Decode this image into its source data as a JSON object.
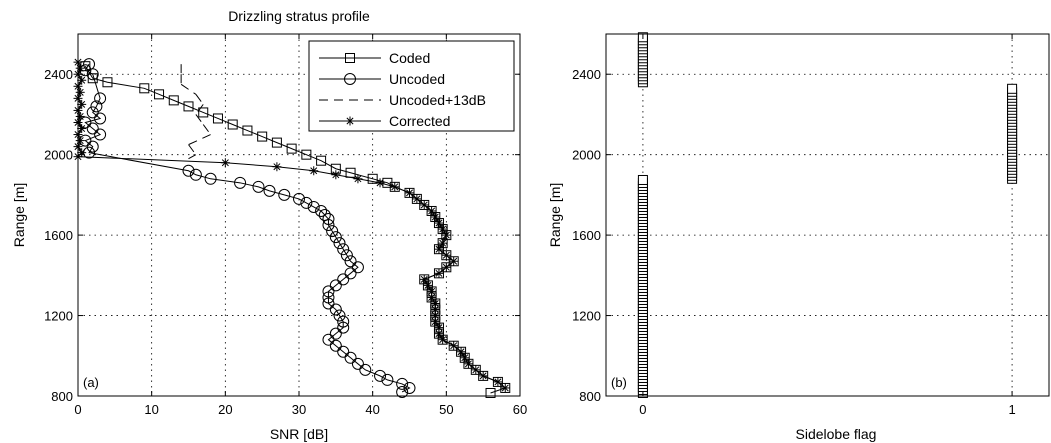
{
  "chart_data": [
    {
      "type": "line",
      "title": "Drizzling stratus profile",
      "panel_label": "(a)",
      "xlabel": "SNR [dB]",
      "ylabel": "Range [m]",
      "xlim": [
        0,
        60
      ],
      "ylim": [
        800,
        2600
      ],
      "xticks": [
        0,
        10,
        20,
        30,
        40,
        50,
        60
      ],
      "yticks": [
        800,
        1200,
        1600,
        2000,
        2400
      ],
      "grid": true,
      "legend_position": "top-right",
      "series": [
        {
          "name": "Coded",
          "marker": "square",
          "line": "solid",
          "points": [
            [
              1,
              2440
            ],
            [
              2,
              2380
            ],
            [
              4,
              2360
            ],
            [
              9,
              2330
            ],
            [
              11,
              2300
            ],
            [
              13,
              2270
            ],
            [
              15,
              2240
            ],
            [
              17,
              2210
            ],
            [
              19,
              2180
            ],
            [
              21,
              2150
            ],
            [
              23,
              2120
            ],
            [
              25,
              2090
            ],
            [
              27,
              2060
            ],
            [
              29,
              2030
            ],
            [
              31,
              2000
            ],
            [
              33,
              1970
            ],
            [
              35,
              1930
            ],
            [
              37,
              1910
            ],
            [
              40,
              1880
            ],
            [
              42,
              1860
            ],
            [
              43,
              1840
            ],
            [
              45,
              1810
            ],
            [
              46,
              1780
            ],
            [
              47,
              1750
            ],
            [
              48,
              1720
            ],
            [
              48.5,
              1690
            ],
            [
              49,
              1660
            ],
            [
              49.5,
              1630
            ],
            [
              50,
              1600
            ],
            [
              49.5,
              1560
            ],
            [
              49,
              1530
            ],
            [
              50,
              1500
            ],
            [
              51,
              1470
            ],
            [
              50,
              1440
            ],
            [
              49,
              1410
            ],
            [
              47,
              1380
            ],
            [
              47.5,
              1350
            ],
            [
              48,
              1320
            ],
            [
              48,
              1290
            ],
            [
              48.5,
              1260
            ],
            [
              48.5,
              1230
            ],
            [
              48.5,
              1200
            ],
            [
              48.5,
              1170
            ],
            [
              49,
              1140
            ],
            [
              49,
              1110
            ],
            [
              49.5,
              1080
            ],
            [
              51,
              1050
            ],
            [
              52,
              1020
            ],
            [
              52.5,
              990
            ],
            [
              53,
              960
            ],
            [
              54,
              930
            ],
            [
              55,
              900
            ],
            [
              57,
              870
            ],
            [
              58,
              840
            ],
            [
              56,
              815
            ]
          ]
        },
        {
          "name": "Uncoded",
          "marker": "circle",
          "line": "solid",
          "points": [
            [
              1.5,
              2450
            ],
            [
              1,
              2420
            ],
            [
              2,
              2400
            ],
            [
              3,
              2280
            ],
            [
              2.5,
              2240
            ],
            [
              2,
              2210
            ],
            [
              3,
              2180
            ],
            [
              1,
              2160
            ],
            [
              2,
              2130
            ],
            [
              3,
              2100
            ],
            [
              1,
              2070
            ],
            [
              2,
              2040
            ],
            [
              1.5,
              2010
            ],
            [
              15,
              1920
            ],
            [
              16,
              1900
            ],
            [
              18,
              1880
            ],
            [
              22,
              1860
            ],
            [
              24.5,
              1840
            ],
            [
              26,
              1820
            ],
            [
              28,
              1800
            ],
            [
              30,
              1780
            ],
            [
              31,
              1760
            ],
            [
              32,
              1740
            ],
            [
              33,
              1720
            ],
            [
              33.5,
              1700
            ],
            [
              34,
              1680
            ],
            [
              34,
              1650
            ],
            [
              34.5,
              1620
            ],
            [
              35,
              1590
            ],
            [
              35.5,
              1560
            ],
            [
              36,
              1530
            ],
            [
              36.5,
              1500
            ],
            [
              37,
              1470
            ],
            [
              38,
              1440
            ],
            [
              37,
              1410
            ],
            [
              36,
              1380
            ],
            [
              35,
              1350
            ],
            [
              34,
              1320
            ],
            [
              34,
              1290
            ],
            [
              34,
              1260
            ],
            [
              35,
              1230
            ],
            [
              35.5,
              1200
            ],
            [
              36,
              1170
            ],
            [
              36,
              1140
            ],
            [
              35,
              1110
            ],
            [
              34,
              1080
            ],
            [
              35,
              1050
            ],
            [
              36,
              1020
            ],
            [
              37,
              990
            ],
            [
              38,
              960
            ],
            [
              39,
              930
            ],
            [
              41,
              900
            ],
            [
              42,
              880
            ],
            [
              44,
              860
            ],
            [
              45,
              840
            ],
            [
              44,
              820
            ]
          ]
        },
        {
          "name": "Uncoded+13dB",
          "marker": "none",
          "line": "dashed",
          "points": [
            [
              14,
              2450
            ],
            [
              14,
              2400
            ],
            [
              14,
              2350
            ],
            [
              16,
              2300
            ],
            [
              17,
              2250
            ],
            [
              16,
              2200
            ],
            [
              17,
              2150
            ],
            [
              18,
              2100
            ],
            [
              15,
              2050
            ],
            [
              16,
              2000
            ],
            [
              15,
              1980
            ]
          ]
        },
        {
          "name": "Corrected",
          "marker": "asterisk",
          "line": "solid",
          "points": [
            [
              0,
              2460
            ],
            [
              0.3,
              2430
            ],
            [
              0,
              2400
            ],
            [
              0.5,
              2370
            ],
            [
              0,
              2340
            ],
            [
              0.3,
              2310
            ],
            [
              0,
              2280
            ],
            [
              0.5,
              2250
            ],
            [
              0,
              2220
            ],
            [
              0.3,
              2190
            ],
            [
              0,
              2160
            ],
            [
              0.5,
              2130
            ],
            [
              0,
              2100
            ],
            [
              0.3,
              2070
            ],
            [
              0,
              2040
            ],
            [
              0.5,
              2010
            ],
            [
              0,
              1990
            ],
            [
              20,
              1960
            ],
            [
              27,
              1940
            ],
            [
              32,
              1920
            ],
            [
              35,
              1900
            ],
            [
              38,
              1880
            ],
            [
              41,
              1860
            ],
            [
              43,
              1840
            ],
            [
              45,
              1810
            ],
            [
              46,
              1780
            ],
            [
              47,
              1750
            ],
            [
              48,
              1720
            ],
            [
              48.5,
              1690
            ],
            [
              49,
              1660
            ],
            [
              49.5,
              1630
            ],
            [
              50,
              1600
            ],
            [
              49.5,
              1560
            ],
            [
              49,
              1530
            ],
            [
              50,
              1500
            ],
            [
              51,
              1470
            ],
            [
              50,
              1440
            ],
            [
              49,
              1410
            ],
            [
              47,
              1380
            ],
            [
              47.5,
              1350
            ],
            [
              48,
              1320
            ],
            [
              48,
              1290
            ],
            [
              48.5,
              1260
            ],
            [
              48.5,
              1230
            ],
            [
              48.5,
              1200
            ],
            [
              48.5,
              1170
            ],
            [
              49,
              1140
            ],
            [
              49,
              1110
            ],
            [
              49.5,
              1080
            ],
            [
              51,
              1050
            ],
            [
              52,
              1020
            ],
            [
              52.5,
              990
            ],
            [
              53,
              960
            ],
            [
              54,
              930
            ],
            [
              55,
              900
            ],
            [
              57,
              870
            ],
            [
              58,
              840
            ]
          ]
        }
      ]
    },
    {
      "type": "scatter",
      "panel_label": "(b)",
      "xlabel": "Sidelobe flag",
      "ylabel": "Range [m]",
      "xlim": [
        -0.1,
        1.1
      ],
      "ylim": [
        800,
        2600
      ],
      "xticks": [
        0,
        1
      ],
      "yticks": [
        800,
        1200,
        1600,
        2000,
        2400
      ],
      "grid": true,
      "series": [
        {
          "marker": "square",
          "x": 0,
          "ranges": [
            [
              815,
              1875
            ],
            [
              2360,
              2590
            ]
          ]
        },
        {
          "marker": "square",
          "x": 1,
          "ranges": [
            [
              1880,
              2340
            ]
          ]
        }
      ]
    }
  ]
}
